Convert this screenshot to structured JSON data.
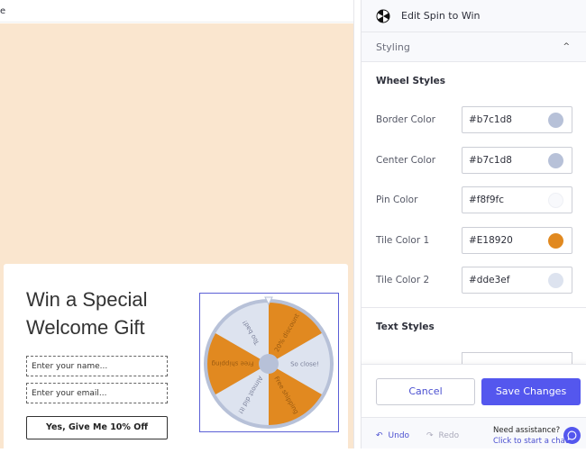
{
  "preview": {
    "topbar_text": "e",
    "popup": {
      "title": "Win a Special Welcome Gift",
      "name_placeholder": "Enter your name...",
      "email_placeholder": "Enter your email...",
      "cta_label": "Yes, Give Me 10% Off"
    },
    "wheel": {
      "border_color": "#b7c1d8",
      "center_color": "#b7c1d8",
      "tiles": [
        {
          "label": "20% discount",
          "color": "#E18920"
        },
        {
          "label": "So close!",
          "color": "#dde3ef"
        },
        {
          "label": "Free shipping",
          "color": "#E18920"
        },
        {
          "label": "Almost did it!",
          "color": "#dde3ef"
        },
        {
          "label": "Free shipping",
          "color": "#E18920"
        },
        {
          "label": "Too bad!",
          "color": "#dde3ef"
        }
      ]
    }
  },
  "panel": {
    "title": "Edit Spin to Win",
    "section": "Styling",
    "wheel_styles_heading": "Wheel Styles",
    "text_styles_heading": "Text Styles",
    "fields": [
      {
        "label": "Border Color",
        "value": "#b7c1d8",
        "swatch": "#b7c1d8"
      },
      {
        "label": "Center Color",
        "value": "#b7c1d8",
        "swatch": "#b7c1d8"
      },
      {
        "label": "Pin Color",
        "value": "#f8f9fc",
        "swatch": "#f8f9fc"
      },
      {
        "label": "Tile Color 1",
        "value": "#E18920",
        "swatch": "#E18920"
      },
      {
        "label": "Tile Color 2",
        "value": "#dde3ef",
        "swatch": "#dde3ef"
      }
    ],
    "cancel_label": "Cancel",
    "save_label": "Save Changes",
    "undo_label": "Undo",
    "redo_label": "Redo",
    "help_question": "Need assistance?",
    "help_link": "Click to start a chat",
    "accent": "#5457ee"
  }
}
